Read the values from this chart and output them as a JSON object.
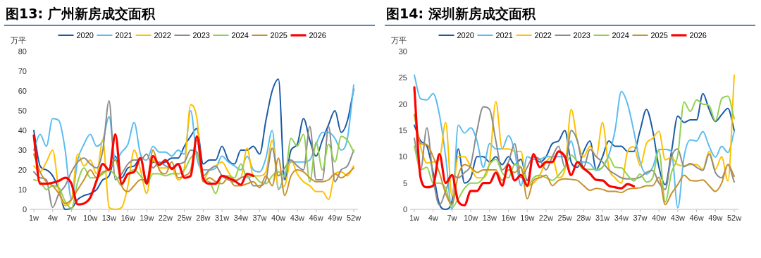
{
  "chart_data": [
    {
      "type": "line",
      "title": "图13: 广州新房成交面积",
      "ylabel": "万平",
      "categories": [
        "1w",
        null,
        null,
        "4w",
        null,
        null,
        "7w",
        null,
        null,
        "10w",
        null,
        null,
        "13w",
        null,
        null,
        "16w",
        null,
        null,
        "19w",
        null,
        null,
        "22w",
        null,
        null,
        "25w",
        null,
        null,
        "28w",
        null,
        null,
        "31w",
        null,
        null,
        "34w",
        null,
        null,
        "37w",
        null,
        null,
        "40w",
        null,
        null,
        "43w",
        null,
        null,
        "46w",
        null,
        null,
        "49w",
        null,
        null,
        "52w"
      ],
      "ylim": [
        0,
        80
      ],
      "yticks": [
        0,
        10,
        20,
        30,
        40,
        50,
        60,
        70,
        80
      ],
      "grid": false,
      "legend": "top",
      "marker": "none",
      "line_style": "solid",
      "series": [
        {
          "name": "2020",
          "color": "#1a5ba6",
          "values": [
            40,
            22,
            20,
            17,
            10,
            0,
            0.5,
            5,
            7,
            8,
            10,
            15,
            17,
            27,
            16,
            21,
            22,
            26,
            14,
            24,
            23,
            24,
            26,
            26,
            32,
            37,
            41,
            23,
            25,
            25,
            32,
            25,
            23,
            30,
            30,
            32,
            28,
            45,
            60,
            66,
            15,
            30,
            33,
            46,
            35,
            27,
            35,
            43,
            50,
            39,
            45,
            61
          ]
        },
        {
          "name": "2021",
          "color": "#5bbcf0",
          "values": [
            30,
            38,
            32,
            46,
            45,
            30,
            5,
            25,
            33,
            38,
            32,
            35,
            47,
            25,
            29,
            33,
            44,
            28,
            25,
            32,
            29,
            29,
            27,
            30,
            28,
            50,
            26,
            20,
            20,
            21,
            27,
            24,
            22,
            20,
            27,
            20,
            19,
            26,
            40,
            10,
            18,
            24,
            24,
            24,
            25,
            33,
            39,
            39,
            36,
            30,
            36,
            63
          ]
        },
        {
          "name": "2022",
          "color": "#ffc000",
          "values": [
            22,
            19,
            24,
            30,
            10,
            2,
            5,
            28,
            22,
            25,
            18,
            35,
            1,
            0,
            1,
            12,
            30,
            20,
            8,
            25,
            21,
            21,
            21,
            15,
            21,
            53,
            46,
            15,
            20,
            22,
            24,
            19,
            15,
            16,
            31,
            17,
            17,
            19,
            35,
            11,
            12,
            25,
            18,
            14,
            12,
            9,
            9,
            5,
            18,
            19,
            17,
            22
          ]
        },
        {
          "name": "2023",
          "color": "#8c8c8c",
          "values": [
            19,
            16,
            15,
            1,
            8,
            12,
            19,
            24,
            26,
            23,
            21,
            30,
            55,
            15,
            18,
            23,
            25,
            25,
            28,
            21,
            24,
            22,
            21,
            23,
            24,
            30,
            29,
            17,
            20,
            22,
            17,
            15,
            14,
            16,
            17,
            12,
            12,
            15,
            31,
            17,
            21,
            25,
            22,
            20,
            42,
            15,
            15,
            42,
            14,
            20,
            22,
            30
          ]
        },
        {
          "name": "2024",
          "color": "#92d050",
          "values": [
            15,
            14,
            10,
            12,
            11,
            4,
            0.5,
            14,
            21,
            16,
            16,
            18,
            20,
            17,
            12,
            18,
            20,
            17,
            13,
            18,
            18,
            17,
            18,
            18,
            20,
            26,
            28,
            15,
            14,
            8,
            17,
            17,
            16,
            23,
            16,
            17,
            14,
            13,
            17,
            19,
            17,
            36,
            32,
            38,
            14,
            34,
            20,
            33,
            24,
            37,
            35,
            29
          ]
        },
        {
          "name": "2025",
          "color": "#c8902a",
          "values": [
            28,
            19,
            14,
            12,
            8,
            3,
            5,
            10,
            15,
            20,
            16,
            19,
            20,
            25,
            12,
            9,
            12,
            15,
            15,
            30,
            20,
            18,
            24,
            16,
            17,
            20,
            35,
            14,
            16,
            14,
            13,
            16,
            12,
            12,
            13,
            14,
            11,
            17,
            12,
            26,
            7,
            17,
            20,
            19,
            16,
            14,
            14,
            15,
            18,
            16,
            18,
            21
          ]
        },
        {
          "name": "2026",
          "color": "#ff0000",
          "values": [
            37.5,
            13,
            13,
            13.5,
            14.5,
            16,
            13,
            2.5,
            3,
            6,
            14.5,
            23,
            20,
            38,
            13,
            18,
            19,
            26,
            13,
            27,
            22.5,
            25,
            20.5,
            23,
            16,
            17,
            37,
            16,
            13,
            13,
            17,
            16,
            14.5,
            12.5,
            18,
            17,
            null,
            null,
            null,
            null,
            null,
            null,
            null,
            null,
            null,
            null,
            null,
            null,
            null,
            null,
            null,
            null
          ]
        }
      ]
    },
    {
      "type": "line",
      "title": "图14: 深圳新房成交面积",
      "ylabel": "万平",
      "categories": [
        "1w",
        null,
        null,
        "4w",
        null,
        null,
        "7w",
        null,
        null,
        "10w",
        null,
        null,
        "13w",
        null,
        null,
        "16w",
        null,
        null,
        "19w",
        null,
        null,
        "22w",
        null,
        null,
        "25w",
        null,
        null,
        "28w",
        null,
        null,
        "31w",
        null,
        null,
        "34w",
        null,
        null,
        "37w",
        null,
        null,
        "40w",
        null,
        null,
        "43w",
        null,
        null,
        "46w",
        null,
        null,
        "49w",
        null,
        null,
        "52w"
      ],
      "ylim": [
        0,
        30
      ],
      "yticks": [
        0,
        5,
        10,
        15,
        20,
        25,
        30
      ],
      "grid": false,
      "legend": "top",
      "marker": "none",
      "line_style": "solid",
      "series": [
        {
          "name": "2020",
          "color": "#1a5ba6",
          "values": [
            16,
            13,
            12,
            7,
            1,
            0,
            1.5,
            11.5,
            5,
            6,
            10,
            10,
            9,
            10,
            8.5,
            10,
            8.5,
            9.5,
            5.5,
            10,
            9,
            10,
            12.5,
            13,
            15,
            9,
            8,
            11,
            13,
            7.6,
            10,
            13,
            12,
            12,
            11,
            11,
            15,
            19,
            15,
            8,
            4.7,
            11,
            17.7,
            16.5,
            17,
            17,
            22,
            19,
            16.7,
            18,
            19.2,
            15
          ]
        },
        {
          "name": "2021",
          "color": "#5bbcf0",
          "values": [
            25.5,
            21,
            20.8,
            22,
            18,
            10,
            0,
            16,
            14.5,
            15.5,
            13,
            8,
            12.5,
            11.5,
            11.5,
            14,
            11,
            4.5,
            10,
            9.5,
            9.5,
            10,
            10,
            10,
            10,
            13,
            9,
            9,
            8.7,
            7.4,
            8,
            10.3,
            15,
            22.4,
            20,
            14.8,
            9,
            6.7,
            8,
            11.4,
            11.4,
            11,
            0.3,
            10,
            13.2,
            13,
            14.8,
            12,
            9.9,
            12,
            10.8,
            14.8
          ]
        },
        {
          "name": "2022",
          "color": "#ffc000",
          "values": [
            18,
            12,
            8.8,
            9,
            9.5,
            16.5,
            2.5,
            10,
            10,
            8,
            6,
            6,
            9,
            20.5,
            11.5,
            11.5,
            11,
            11,
            4.5,
            5,
            6.5,
            9,
            10,
            6,
            7.5,
            19,
            13,
            10,
            12,
            10,
            16.5,
            8,
            6,
            5,
            11,
            11.9,
            8.3,
            12.5,
            13.5,
            14.8,
            9.4,
            9.9,
            8.5,
            8.3,
            8.5,
            8.5,
            7.6,
            11,
            7.6,
            10,
            5.4,
            25.5
          ]
        },
        {
          "name": "2023",
          "color": "#8c8c8c",
          "values": [
            13.5,
            7.5,
            15.5,
            6,
            0.8,
            3.5,
            6.5,
            6,
            7,
            8.5,
            15,
            19.5,
            19,
            13,
            7.5,
            9,
            12.5,
            6,
            8,
            10,
            9.5,
            7.5,
            10,
            12,
            8,
            15,
            13,
            8,
            11.4,
            10,
            9,
            7.5,
            6.7,
            6,
            5.8,
            5.8,
            6.1,
            7,
            7.4,
            5,
            3.8,
            10,
            11.5,
            8.1,
            8.7,
            8,
            7.4,
            10.5,
            7,
            6,
            8.5,
            5.2
          ]
        },
        {
          "name": "2024",
          "color": "#92d050",
          "values": [
            12,
            7.5,
            8,
            5,
            5,
            4,
            0.3,
            2,
            4,
            5,
            5,
            6,
            8.5,
            9.5,
            7,
            6,
            8.5,
            8,
            4.3,
            6,
            6.5,
            6,
            5.5,
            6.5,
            8,
            10.3,
            9,
            7.6,
            7.6,
            7.6,
            8,
            9.9,
            8,
            7.9,
            6.5,
            5.4,
            6.7,
            5.2,
            6,
            11.2,
            1.4,
            7,
            10.3,
            20.4,
            18.6,
            20.8,
            20,
            19.7,
            16.8,
            21,
            21.5,
            17.2
          ]
        },
        {
          "name": "2025",
          "color": "#c8902a",
          "values": [
            18,
            12.5,
            12.3,
            10,
            7,
            3,
            1,
            6.5,
            8.5,
            8,
            7,
            7.5,
            7.5,
            7.5,
            5.5,
            7.5,
            7,
            8,
            2,
            5.5,
            6,
            6.5,
            4.5,
            5.5,
            5.8,
            5.7,
            5.5,
            4.5,
            3.6,
            4,
            3.8,
            3.4,
            3.4,
            3.2,
            3.8,
            4,
            4.1,
            4.5,
            4.5,
            6.1,
            0.9,
            3,
            4.7,
            6.5,
            5.5,
            5.4,
            5.6,
            4.5,
            3.4,
            5,
            8.5,
            6.3
          ]
        },
        {
          "name": "2026",
          "color": "#ff0000",
          "values": [
            23.2,
            6,
            4.2,
            4.5,
            10.5,
            5,
            6.5,
            1.5,
            0.8,
            3.5,
            3.5,
            5,
            5,
            7,
            4.5,
            8.5,
            5.5,
            6.5,
            4.5,
            10.5,
            8,
            9,
            9,
            11,
            10,
            6.5,
            9,
            7.8,
            6.8,
            5.6,
            5.5,
            4.5,
            4.2,
            4,
            4.8,
            4.4,
            null,
            null,
            null,
            null,
            null,
            null,
            null,
            null,
            null,
            null,
            null,
            null,
            null,
            null,
            null,
            null
          ]
        }
      ]
    }
  ]
}
